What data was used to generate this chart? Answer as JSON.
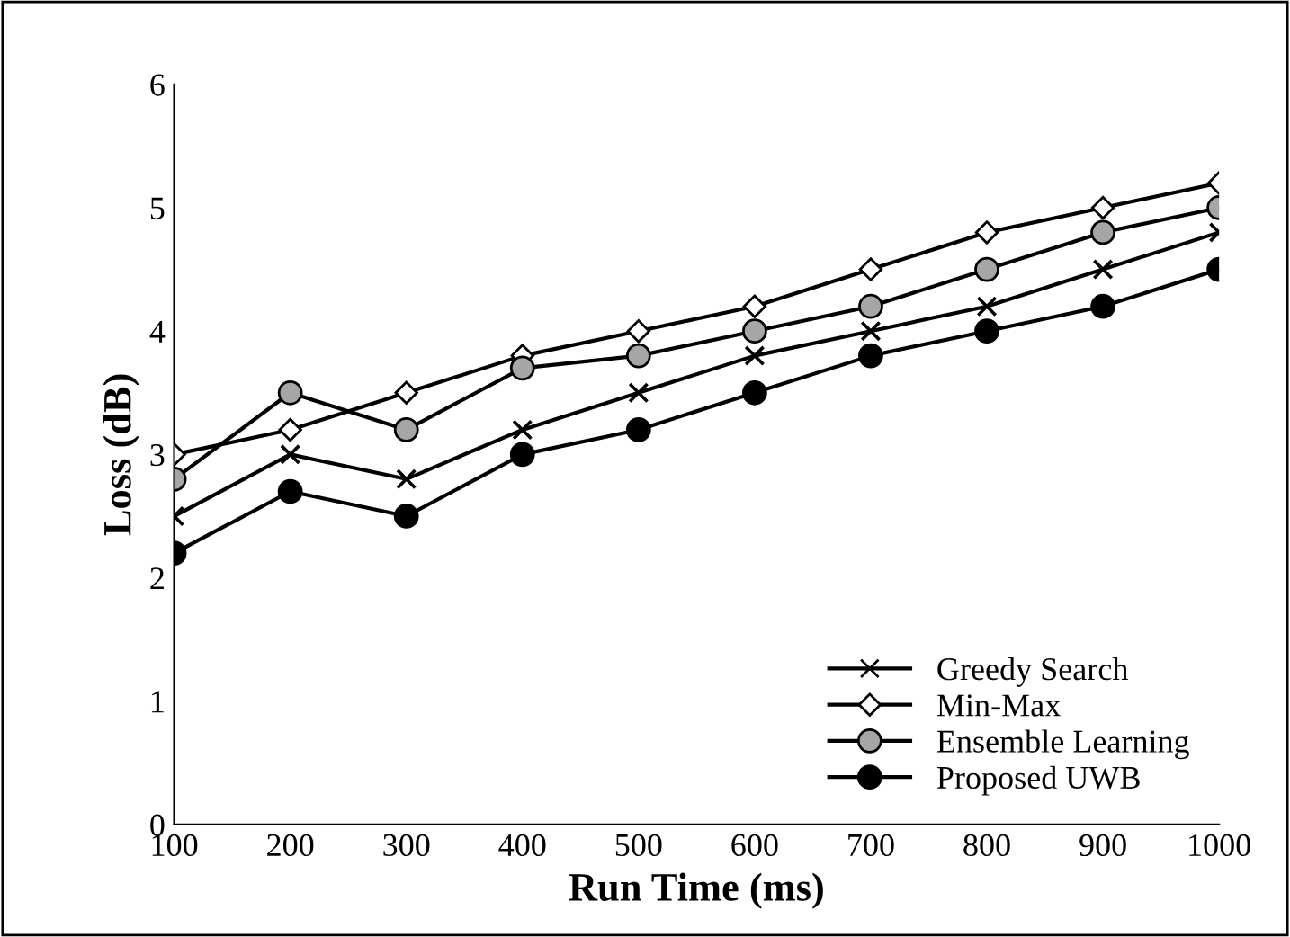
{
  "chart_data": {
    "type": "line",
    "xlabel": "Run Time (ms)",
    "ylabel": "Loss (dB)",
    "x": [
      100,
      200,
      300,
      400,
      500,
      600,
      700,
      800,
      900,
      1000
    ],
    "xlim": [
      100,
      1000
    ],
    "xticks": [
      100,
      200,
      300,
      400,
      500,
      600,
      700,
      800,
      900,
      1000
    ],
    "ylim": [
      0,
      6
    ],
    "yticks": [
      0,
      1,
      2,
      3,
      4,
      5,
      6
    ],
    "grid": false,
    "legend": "bottom right",
    "line_style": "solid",
    "series": [
      {
        "name": "Greedy Search",
        "color": "#000000",
        "marker": "cross",
        "values": [
          2.5,
          3.0,
          2.8,
          3.2,
          3.5,
          3.8,
          4.0,
          4.2,
          4.5,
          4.8
        ]
      },
      {
        "name": "Min-Max",
        "color": "#ffffff",
        "marker": "diamond",
        "values": [
          3.0,
          3.2,
          3.5,
          3.8,
          4.0,
          4.2,
          4.5,
          4.8,
          5.0,
          5.2
        ]
      },
      {
        "name": "Ensemble Learning",
        "color": "#a6a6a6",
        "marker": "circle",
        "values": [
          2.8,
          3.5,
          3.2,
          3.7,
          3.8,
          4.0,
          4.2,
          4.5,
          4.8,
          5.0
        ]
      },
      {
        "name": "Proposed UWB",
        "color": "#000000",
        "marker": "circle",
        "values": [
          2.2,
          2.7,
          2.5,
          3.0,
          3.2,
          3.5,
          3.8,
          4.0,
          4.2,
          4.5
        ]
      }
    ]
  }
}
